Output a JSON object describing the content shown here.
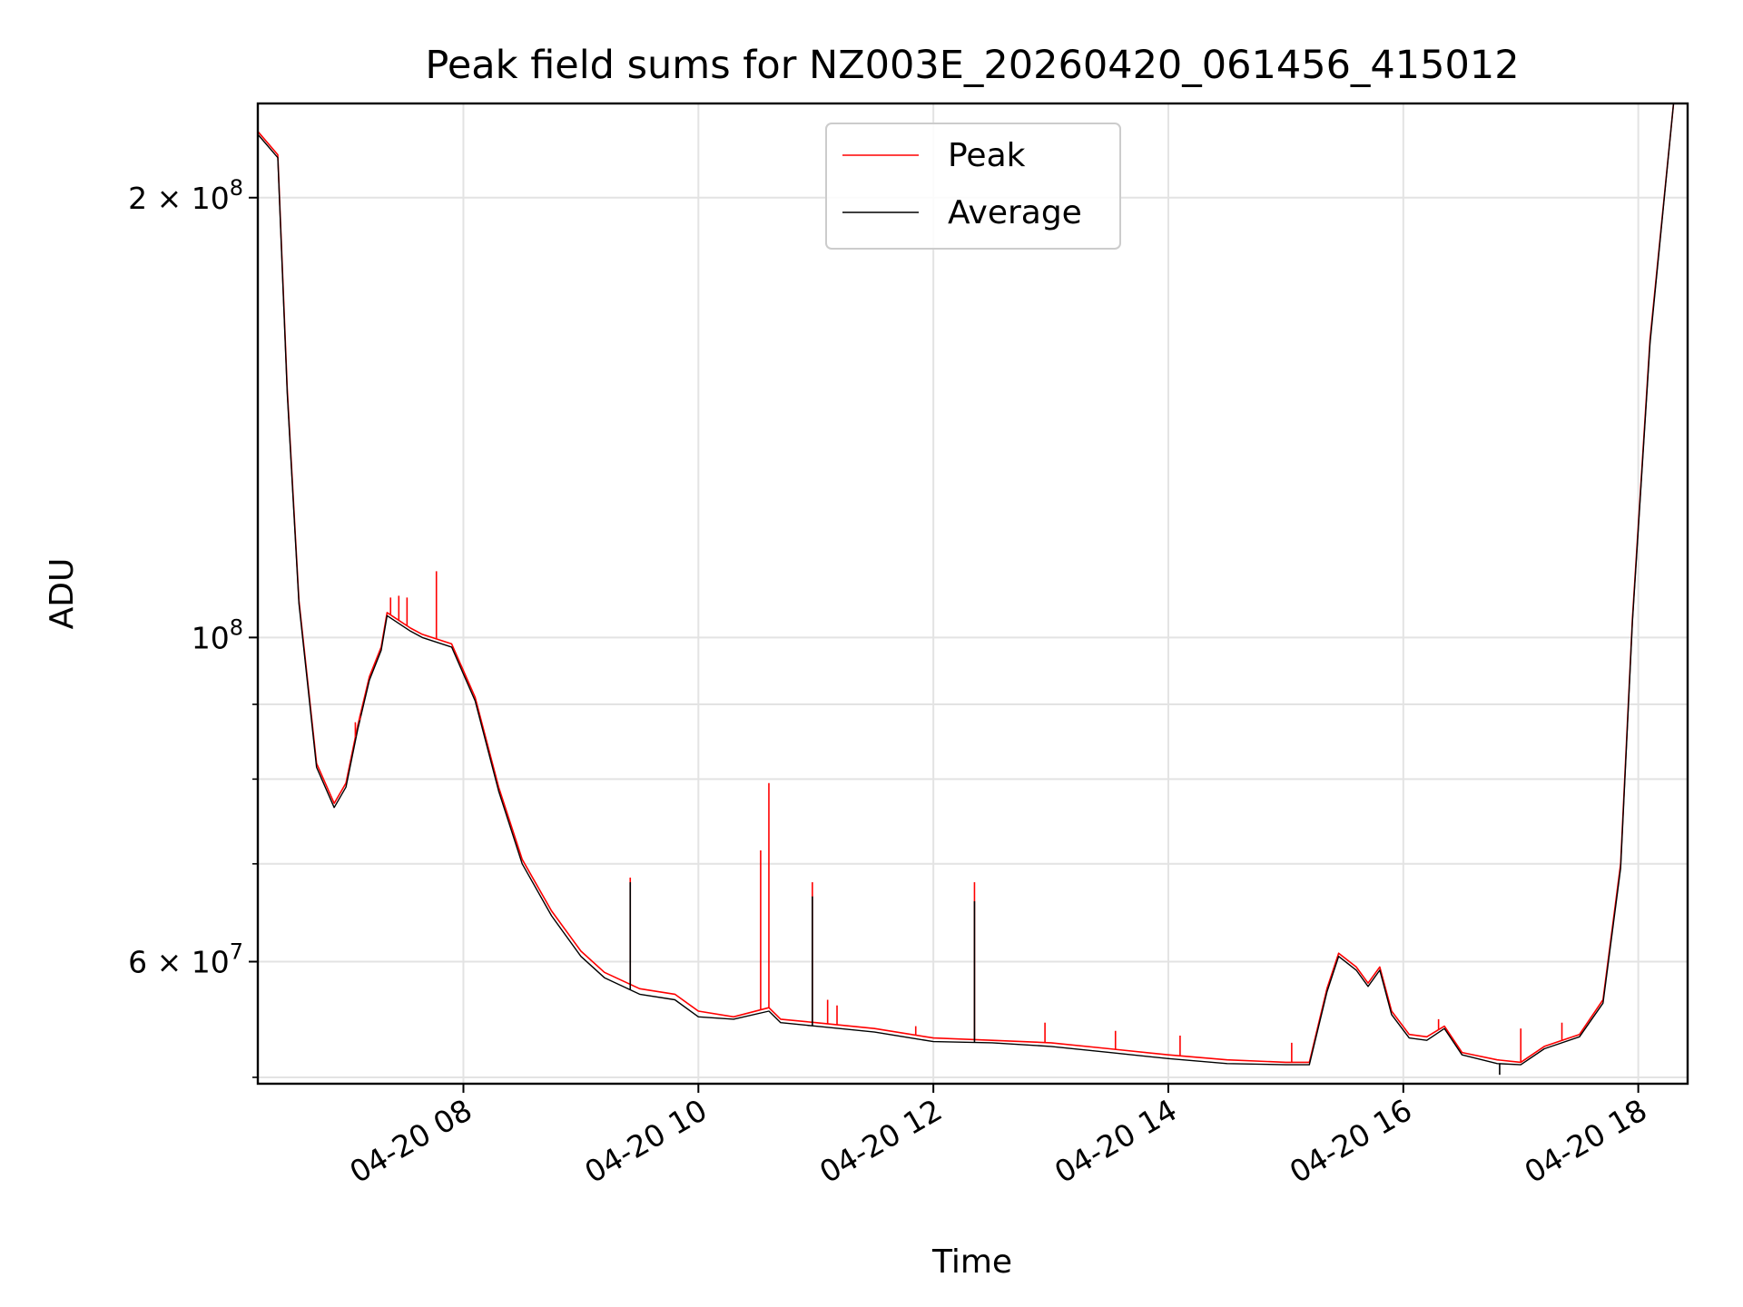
{
  "chart_data": {
    "type": "line",
    "title": "Peak field sums for NZ003E_20260420_061456_415012",
    "xlabel": "Time",
    "ylabel": "ADU",
    "x_unit": "hours since 04-20 00:00",
    "xlim": [
      6.25,
      18.42
    ],
    "ylim": [
      49500000,
      232000000
    ],
    "yscale": "log",
    "grid": true,
    "legend_position": "upper center",
    "x_ticks": [
      {
        "value": 8,
        "label": "04-20 08"
      },
      {
        "value": 10,
        "label": "04-20 10"
      },
      {
        "value": 12,
        "label": "04-20 12"
      },
      {
        "value": 14,
        "label": "04-20 14"
      },
      {
        "value": 16,
        "label": "04-20 16"
      },
      {
        "value": 18,
        "label": "04-20 18"
      }
    ],
    "y_major_ticks": [
      {
        "value": 60000000,
        "mantissa": "6",
        "exp": "7",
        "mult": "×"
      },
      {
        "value": 100000000,
        "mantissa": "",
        "exp": "8",
        "mult": ""
      },
      {
        "value": 200000000,
        "mantissa": "2",
        "exp": "8",
        "mult": "×"
      }
    ],
    "y_minor_ticks": [
      50000000,
      70000000,
      80000000,
      90000000
    ],
    "series": [
      {
        "name": "Peak",
        "color": "#ff0000",
        "x": [
          6.25,
          6.42,
          6.5,
          6.6,
          6.75,
          6.9,
          7.0,
          7.1,
          7.2,
          7.3,
          7.35,
          7.55,
          7.65,
          7.9,
          8.1,
          8.3,
          8.5,
          8.75,
          9.0,
          9.2,
          9.5,
          9.8,
          10.0,
          10.3,
          10.6,
          10.7,
          11.0,
          11.5,
          12.0,
          12.5,
          13.0,
          13.5,
          14.0,
          14.5,
          15.0,
          15.2,
          15.35,
          15.45,
          15.6,
          15.7,
          15.8,
          15.9,
          16.05,
          16.2,
          16.35,
          16.5,
          16.8,
          17.0,
          17.2,
          17.5,
          17.7,
          17.85,
          17.95,
          18.1,
          18.3,
          18.42
        ],
        "values": [
          222000000,
          214000000,
          148000000,
          106000000,
          82000000,
          77000000,
          79500000,
          87000000,
          94000000,
          98500000,
          104000000,
          101500000,
          100500000,
          99000000,
          91000000,
          79000000,
          70500000,
          65000000,
          61000000,
          59000000,
          57500000,
          57000000,
          55500000,
          55000000,
          55800000,
          54800000,
          54500000,
          54000000,
          53200000,
          53000000,
          52800000,
          52300000,
          51800000,
          51400000,
          51200000,
          51200000,
          57500000,
          60800000,
          59500000,
          58000000,
          59500000,
          55500000,
          53500000,
          53300000,
          54200000,
          52000000,
          51400000,
          51200000,
          52500000,
          53500000,
          56500000,
          70000000,
          103000000,
          160000000,
          232000000,
          232000000
        ]
      },
      {
        "name": "Average",
        "color": "#000000",
        "x": [
          6.25,
          6.42,
          6.5,
          6.6,
          6.75,
          6.9,
          7.0,
          7.1,
          7.2,
          7.3,
          7.35,
          7.55,
          7.65,
          7.9,
          8.1,
          8.3,
          8.5,
          8.75,
          9.0,
          9.2,
          9.5,
          9.8,
          10.0,
          10.3,
          10.6,
          10.7,
          11.0,
          11.5,
          12.0,
          12.5,
          13.0,
          13.5,
          14.0,
          14.5,
          15.0,
          15.2,
          15.35,
          15.45,
          15.6,
          15.7,
          15.8,
          15.9,
          16.05,
          16.2,
          16.35,
          16.5,
          16.8,
          17.0,
          17.2,
          17.5,
          17.7,
          17.85,
          17.95,
          18.1,
          18.3,
          18.42
        ],
        "values": [
          221000000,
          213000000,
          147000000,
          105500000,
          81500000,
          76500000,
          79000000,
          86500000,
          93500000,
          98000000,
          103500000,
          101000000,
          100000000,
          98500000,
          90500000,
          78500000,
          70000000,
          64500000,
          60500000,
          58500000,
          57000000,
          56500000,
          55000000,
          54800000,
          55500000,
          54500000,
          54200000,
          53700000,
          52900000,
          52800000,
          52500000,
          52000000,
          51500000,
          51100000,
          51000000,
          51000000,
          57200000,
          60500000,
          59200000,
          57700000,
          59200000,
          55200000,
          53200000,
          53000000,
          54000000,
          51800000,
          51100000,
          51000000,
          52300000,
          53300000,
          56200000,
          69500000,
          102500000,
          159000000,
          232000000,
          232000000
        ]
      }
    ],
    "spikes": [
      {
        "series": "Peak",
        "x": 7.08,
        "value": 87500000
      },
      {
        "series": "Peak",
        "x": 7.12,
        "value": 87800000
      },
      {
        "series": "Peak",
        "x": 7.38,
        "value": 106500000
      },
      {
        "series": "Peak",
        "x": 7.45,
        "value": 106800000
      },
      {
        "series": "Peak",
        "x": 7.52,
        "value": 106500000
      },
      {
        "series": "Peak",
        "x": 7.77,
        "value": 111000000
      },
      {
        "series": "Peak",
        "x": 9.42,
        "value": 68500000
      },
      {
        "series": "Average",
        "x": 9.42,
        "value": 68000000
      },
      {
        "series": "Peak",
        "x": 10.53,
        "value": 71500000
      },
      {
        "series": "Peak",
        "x": 10.6,
        "value": 79500000
      },
      {
        "series": "Peak",
        "x": 10.97,
        "value": 68000000
      },
      {
        "series": "Average",
        "x": 10.97,
        "value": 66500000
      },
      {
        "series": "Peak",
        "x": 11.1,
        "value": 56500000
      },
      {
        "series": "Peak",
        "x": 11.18,
        "value": 56000000
      },
      {
        "series": "Peak",
        "x": 11.85,
        "value": 54200000
      },
      {
        "series": "Peak",
        "x": 12.35,
        "value": 68000000
      },
      {
        "series": "Average",
        "x": 12.35,
        "value": 66000000
      },
      {
        "series": "Peak",
        "x": 12.95,
        "value": 54500000
      },
      {
        "series": "Peak",
        "x": 13.55,
        "value": 53800000
      },
      {
        "series": "Peak",
        "x": 14.1,
        "value": 53400000
      },
      {
        "series": "Peak",
        "x": 15.05,
        "value": 52800000
      },
      {
        "series": "Peak",
        "x": 16.3,
        "value": 54800000
      },
      {
        "series": "Peak",
        "x": 17.0,
        "value": 54000000
      },
      {
        "series": "Peak",
        "x": 17.35,
        "value": 54500000
      },
      {
        "series": "Average",
        "x": 16.82,
        "value": 50200000
      }
    ]
  }
}
